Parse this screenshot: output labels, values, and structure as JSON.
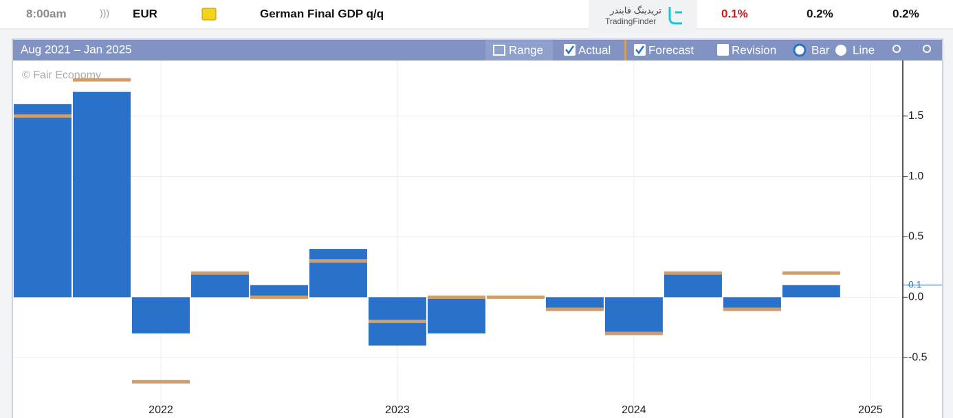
{
  "header": {
    "time": "8:00am",
    "currency": "EUR",
    "event": "German Final GDP q/q",
    "actual": "0.1%",
    "forecast": "0.2%",
    "previous": "0.2%"
  },
  "watermark": {
    "name_fa": "تریدینگ فایندر",
    "name_en": "TradingFinder"
  },
  "toolbar": {
    "date_range": "Aug 2021 – Jan 2025",
    "range": "Range",
    "revision": "Revision",
    "bar": "Bar",
    "line": "Line"
  },
  "chart_data": {
    "type": "bar",
    "credit": "© Fair Economy",
    "x": [
      2021.5,
      2021.75,
      2022.0,
      2022.25,
      2022.5,
      2022.75,
      2023.0,
      2023.25,
      2023.5,
      2023.75,
      2024.0,
      2024.25,
      2024.5,
      2024.75
    ],
    "xlim": [
      2021.375,
      2025.137
    ],
    "xticks": [
      2022,
      2023,
      2024,
      2025
    ],
    "series": [
      {
        "name": "Actual",
        "color": "#2a72c9",
        "values": [
          1.6,
          1.7,
          -0.3,
          0.2,
          0.1,
          0.4,
          -0.4,
          -0.3,
          0.0,
          -0.1,
          -0.3,
          0.2,
          -0.1,
          0.1
        ]
      },
      {
        "name": "Forecast",
        "color": "#d19e6a",
        "values": [
          1.5,
          1.8,
          -0.7,
          0.2,
          0.0,
          0.3,
          -0.2,
          0.0,
          0.0,
          -0.1,
          -0.3,
          0.2,
          -0.1,
          0.2
        ]
      }
    ],
    "ylim": [
      -1.0,
      1.96
    ],
    "yticks": [
      -0.5,
      {
        "value": 0,
        "label": "0.0"
      },
      0.5,
      {
        "value": 1,
        "label": "1.0"
      },
      1.5
    ],
    "value_marker": 0.1,
    "grid": true
  }
}
